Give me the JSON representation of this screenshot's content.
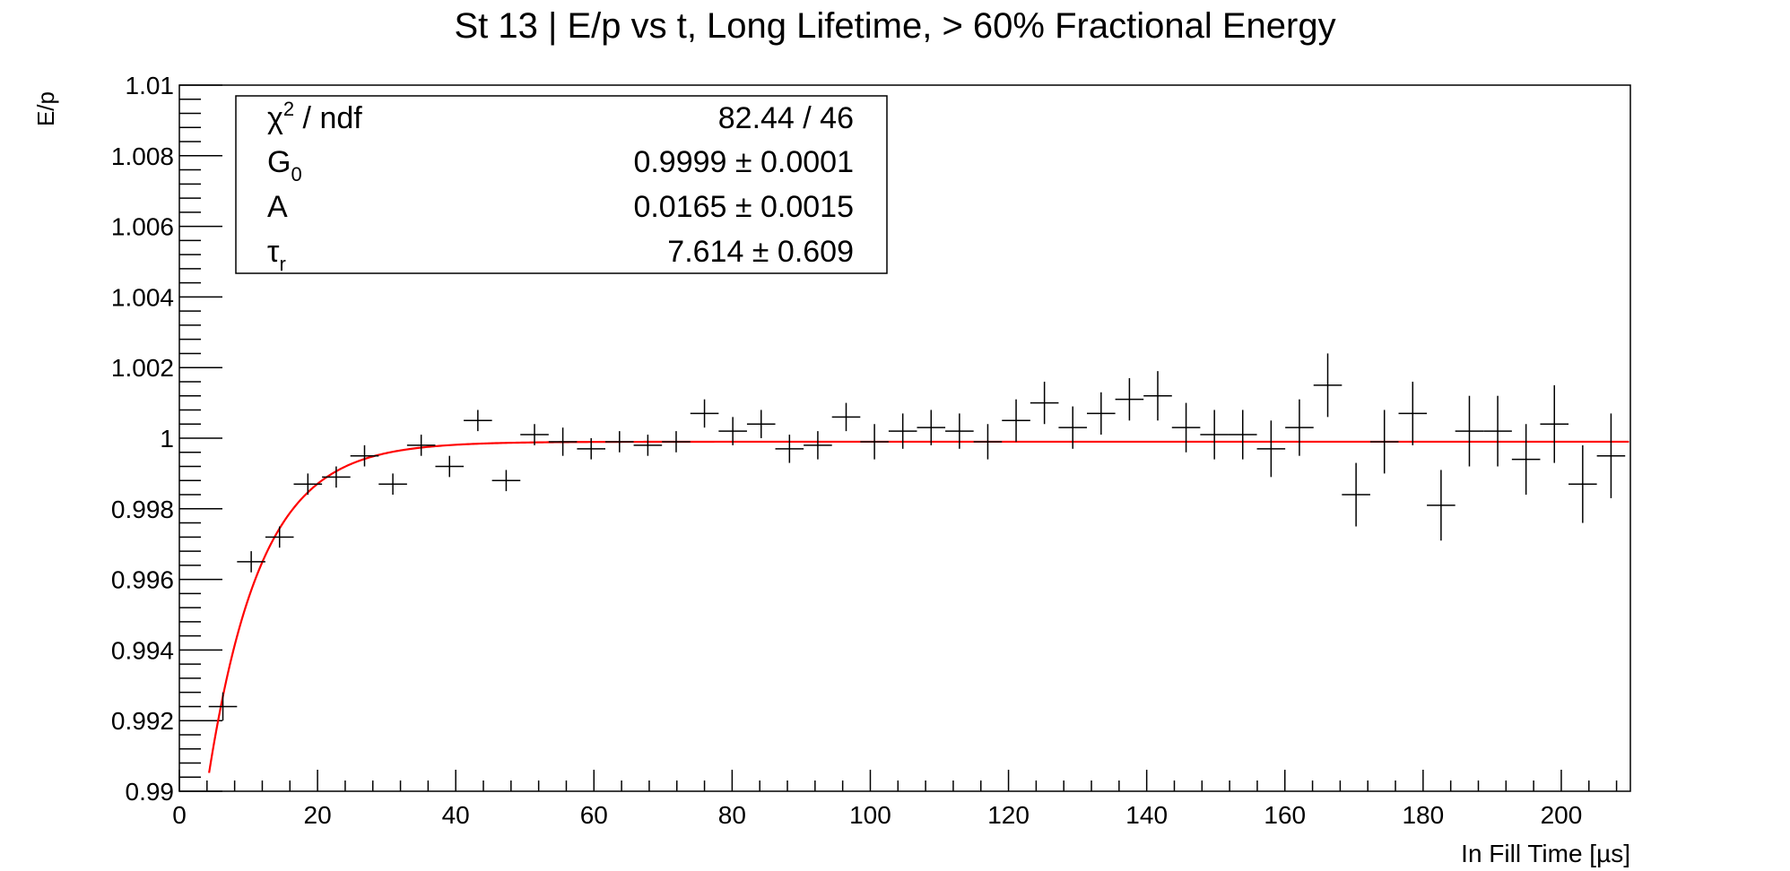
{
  "chart_data": {
    "type": "scatter",
    "title": "St 13 | E/p vs t, Long Lifetime, > 60% Fractional Energy",
    "xlabel": "In Fill Time [µs]",
    "ylabel": "E/p",
    "xlim": [
      0,
      210
    ],
    "ylim": [
      0.99,
      1.01
    ],
    "x_major_ticks": [
      0,
      20,
      40,
      60,
      80,
      100,
      120,
      140,
      160,
      180,
      200
    ],
    "x_tick_labels": [
      "0",
      "20",
      "40",
      "60",
      "80",
      "100",
      "120",
      "140",
      "160",
      "180",
      "200"
    ],
    "y_major_ticks": [
      0.99,
      0.992,
      0.994,
      0.996,
      0.998,
      1.0,
      1.002,
      1.004,
      1.006,
      1.008,
      1.01
    ],
    "y_tick_labels": [
      "0.99",
      "0.992",
      "0.994",
      "0.996",
      "0.998",
      "1",
      "1.002",
      "1.004",
      "1.006",
      "1.008",
      "1.01"
    ],
    "grid": false,
    "series": [
      {
        "color": "#000000",
        "bin_width": 4.1,
        "x": [
          6.3,
          10.4,
          14.5,
          18.6,
          22.7,
          26.8,
          30.9,
          35.0,
          39.1,
          43.2,
          47.3,
          51.4,
          55.5,
          59.6,
          63.7,
          67.8,
          71.9,
          76.0,
          80.1,
          84.2,
          88.3,
          92.4,
          96.5,
          100.6,
          104.7,
          108.8,
          112.9,
          117.0,
          121.1,
          125.2,
          129.3,
          133.4,
          137.5,
          141.6,
          145.7,
          149.8,
          153.9,
          158.0,
          162.1,
          166.2,
          170.3,
          174.4,
          178.5,
          182.6,
          186.7,
          190.8,
          194.9,
          199.0,
          203.1,
          207.2
        ],
        "y": [
          0.9924,
          0.9965,
          0.9972,
          0.9987,
          0.9989,
          0.9995,
          0.9987,
          0.9998,
          0.9992,
          1.0005,
          0.9988,
          1.0001,
          0.9999,
          0.9997,
          0.9999,
          0.9998,
          0.9999,
          1.0007,
          1.0002,
          1.0004,
          0.9997,
          0.9998,
          1.0006,
          0.9999,
          1.0002,
          1.0003,
          1.0002,
          0.9999,
          1.0005,
          1.001,
          1.0003,
          1.0007,
          1.0011,
          1.0012,
          1.0003,
          1.0001,
          1.0001,
          0.9997,
          1.0003,
          1.0015,
          0.9984,
          0.9999,
          1.0007,
          0.9981,
          1.0002,
          1.0002,
          0.9994,
          1.0004,
          0.9987,
          0.9995
        ],
        "yerr": [
          0.0004,
          0.0003,
          0.0003,
          0.0003,
          0.0003,
          0.0003,
          0.0003,
          0.0003,
          0.0003,
          0.0003,
          0.0003,
          0.0003,
          0.0004,
          0.0003,
          0.0003,
          0.0003,
          0.0003,
          0.0004,
          0.0004,
          0.0004,
          0.0004,
          0.0004,
          0.0004,
          0.0005,
          0.0005,
          0.0005,
          0.0005,
          0.0005,
          0.0006,
          0.0006,
          0.0006,
          0.0006,
          0.0006,
          0.0007,
          0.0007,
          0.0007,
          0.0007,
          0.0008,
          0.0008,
          0.0009,
          0.0009,
          0.0009,
          0.0009,
          0.001,
          0.001,
          0.001,
          0.001,
          0.0011,
          0.0011,
          0.0012
        ]
      },
      {
        "type": "line",
        "color": "#ff0000",
        "function": "G0*(1 - A*exp(-t/tau_r))",
        "params": {
          "G0": 0.9999,
          "A": 0.0165,
          "tau_r": 7.614
        },
        "xrange": [
          4.3,
          210
        ]
      }
    ],
    "stats_box": {
      "rows": [
        {
          "label_main": "χ",
          "label_sup": "2",
          "label_sub": "",
          "label_tail": " / ndf",
          "value": "82.44 / 46"
        },
        {
          "label_main": "G",
          "label_sup": "",
          "label_sub": "0",
          "label_tail": "",
          "value": "0.9999 ± 0.0001"
        },
        {
          "label_main": "A",
          "label_sup": "",
          "label_sub": "",
          "label_tail": "",
          "value": "0.0165 ± 0.0015"
        },
        {
          "label_main": "τ",
          "label_sup": "",
          "label_sub": "r",
          "label_tail": "",
          "value": "7.614 ± 0.609"
        }
      ]
    }
  }
}
